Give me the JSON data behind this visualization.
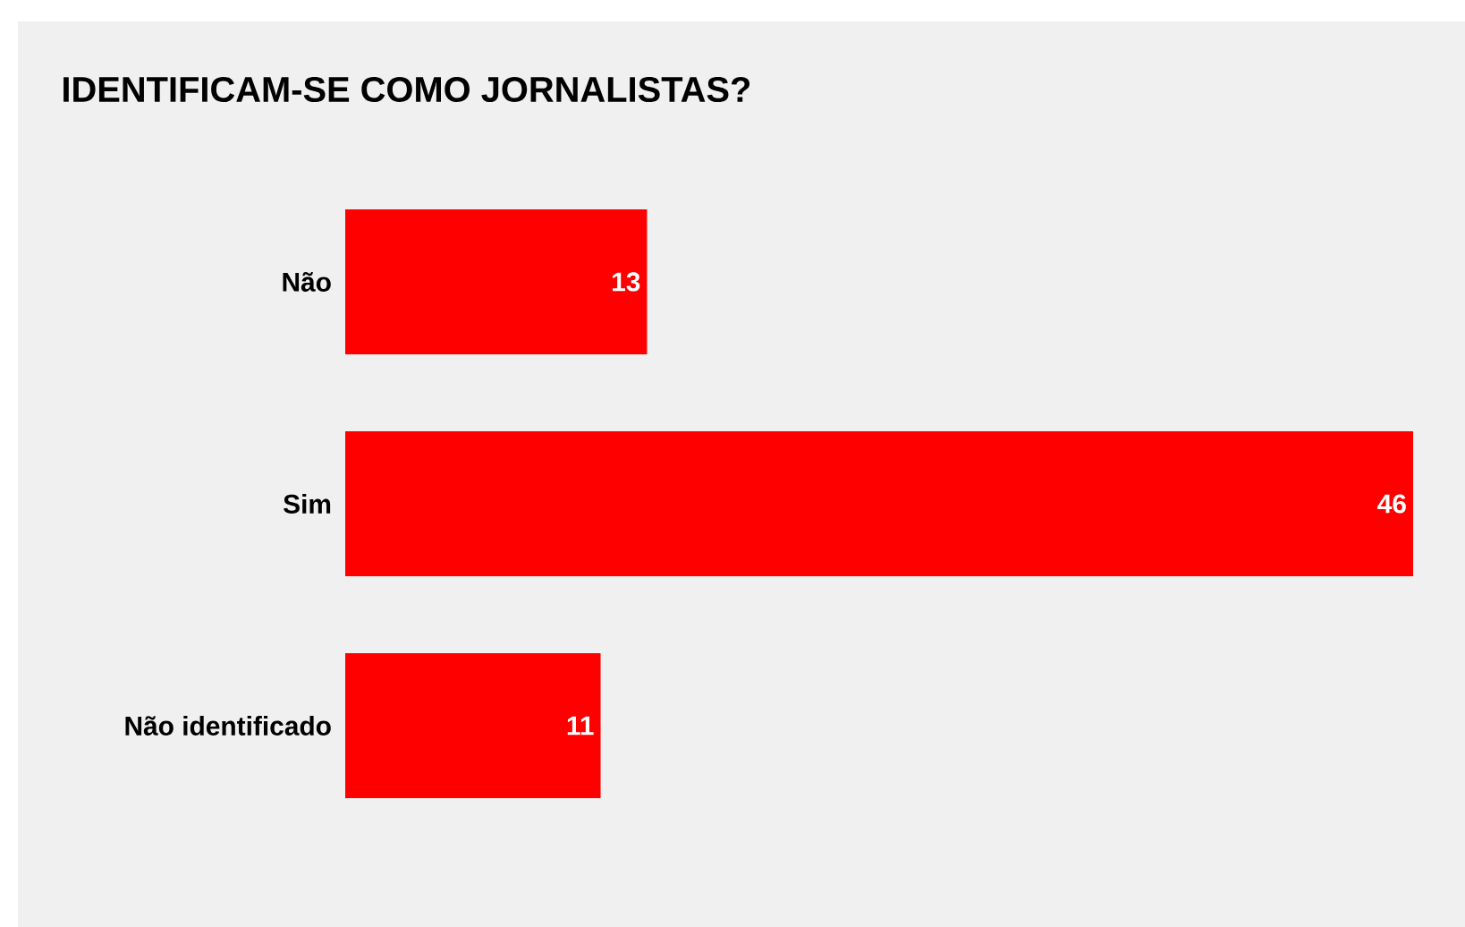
{
  "chart_data": {
    "type": "bar",
    "orientation": "horizontal",
    "title": "IDENTIFICAM-SE COMO JORNALISTAS?",
    "categories": [
      "Não",
      "Sim",
      "Não identificado"
    ],
    "values": [
      13,
      46,
      11
    ],
    "color": "#ff0000",
    "data_labels": true
  }
}
